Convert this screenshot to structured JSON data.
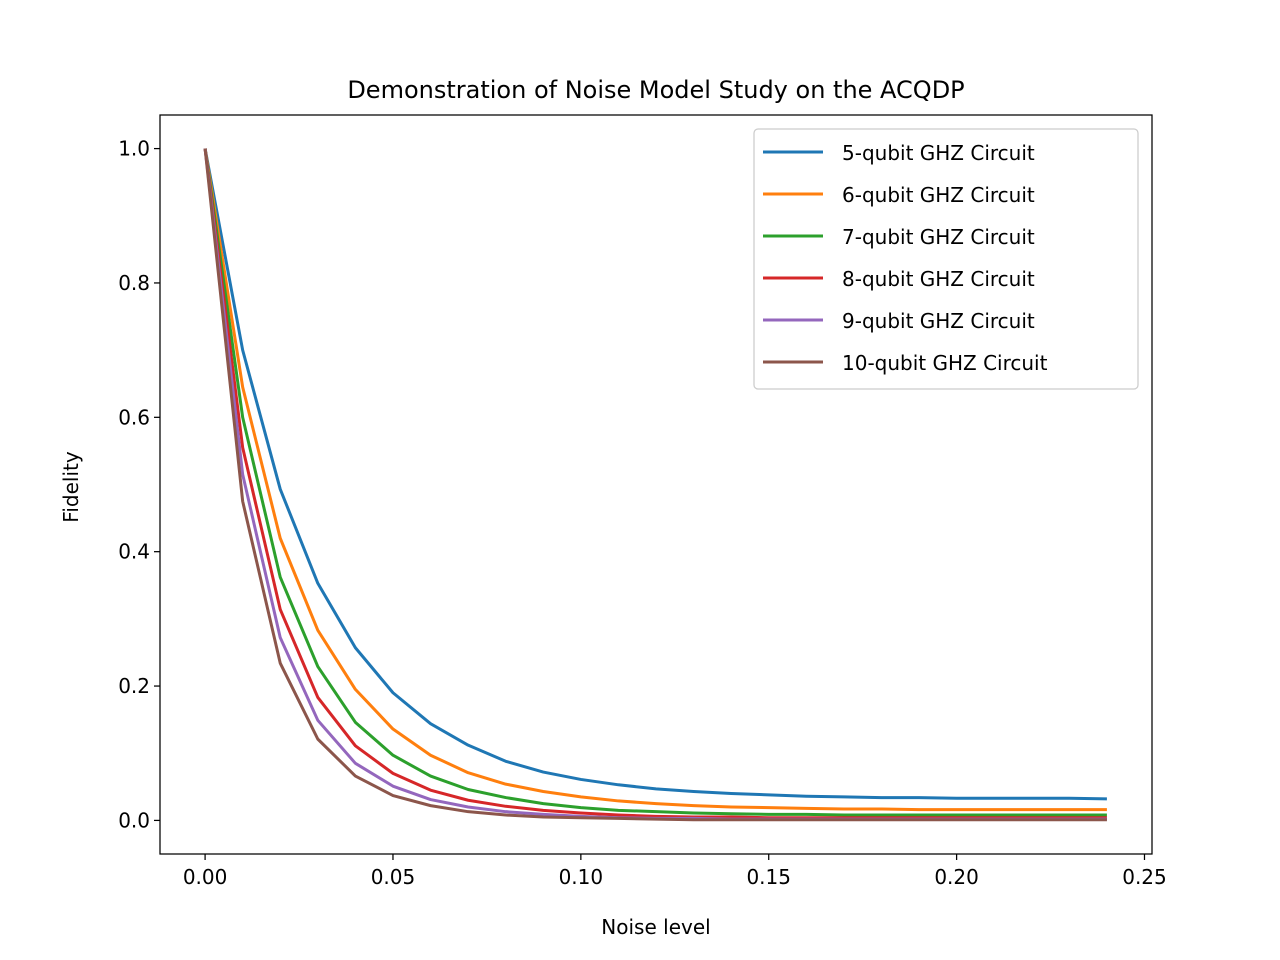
{
  "chart_data": {
    "type": "line",
    "title": "Demonstration of Noise Model Study on the ACQDP",
    "xlabel": "Noise level",
    "ylabel": "Fidelity",
    "xlim": [
      -0.012,
      0.252
    ],
    "ylim": [
      -0.05,
      1.05
    ],
    "xticks": [
      0.0,
      0.05,
      0.1,
      0.15,
      0.2,
      0.25
    ],
    "xtick_labels": [
      "0.00",
      "0.05",
      "0.10",
      "0.15",
      "0.20",
      "0.25"
    ],
    "yticks": [
      0.0,
      0.2,
      0.4,
      0.6,
      0.8,
      1.0
    ],
    "ytick_labels": [
      "0.0",
      "0.2",
      "0.4",
      "0.6",
      "0.8",
      "1.0"
    ],
    "legend_position": "top-right",
    "grid": false,
    "x": [
      0.0,
      0.01,
      0.02,
      0.03,
      0.04,
      0.05,
      0.06,
      0.07,
      0.08,
      0.09,
      0.1,
      0.11,
      0.12,
      0.13,
      0.14,
      0.15,
      0.16,
      0.17,
      0.18,
      0.19,
      0.2,
      0.21,
      0.22,
      0.23,
      0.24
    ],
    "series": [
      {
        "name": "5-qubit GHZ Circuit",
        "color": "#1f77b4",
        "values": [
          1.0,
          0.7,
          0.493,
          0.353,
          0.257,
          0.19,
          0.144,
          0.112,
          0.088,
          0.072,
          0.061,
          0.053,
          0.047,
          0.043,
          0.04,
          0.038,
          0.036,
          0.035,
          0.034,
          0.034,
          0.033,
          0.033,
          0.033,
          0.033,
          0.032
        ]
      },
      {
        "name": "6-qubit GHZ Circuit",
        "color": "#ff7f0e",
        "values": [
          1.0,
          0.645,
          0.42,
          0.283,
          0.195,
          0.136,
          0.097,
          0.071,
          0.054,
          0.043,
          0.035,
          0.029,
          0.025,
          0.022,
          0.02,
          0.019,
          0.018,
          0.017,
          0.017,
          0.016,
          0.016,
          0.016,
          0.016,
          0.016,
          0.016
        ]
      },
      {
        "name": "7-qubit GHZ Circuit",
        "color": "#2ca02c",
        "values": [
          1.0,
          0.6,
          0.362,
          0.229,
          0.146,
          0.097,
          0.066,
          0.046,
          0.034,
          0.025,
          0.019,
          0.015,
          0.013,
          0.011,
          0.01,
          0.009,
          0.009,
          0.008,
          0.008,
          0.008,
          0.008,
          0.008,
          0.008,
          0.008,
          0.008
        ]
      },
      {
        "name": "8-qubit GHZ Circuit",
        "color": "#d62728",
        "values": [
          1.0,
          0.555,
          0.314,
          0.183,
          0.111,
          0.07,
          0.045,
          0.03,
          0.021,
          0.015,
          0.011,
          0.008,
          0.006,
          0.005,
          0.005,
          0.004,
          0.004,
          0.004,
          0.004,
          0.004,
          0.004,
          0.004,
          0.004,
          0.004,
          0.004
        ]
      },
      {
        "name": "9-qubit GHZ Circuit",
        "color": "#9467bd",
        "values": [
          1.0,
          0.515,
          0.272,
          0.149,
          0.085,
          0.051,
          0.031,
          0.02,
          0.013,
          0.009,
          0.006,
          0.004,
          0.003,
          0.003,
          0.002,
          0.002,
          0.002,
          0.002,
          0.002,
          0.002,
          0.002,
          0.002,
          0.002,
          0.002,
          0.002
        ]
      },
      {
        "name": "10-qubit GHZ Circuit",
        "color": "#8c564b",
        "values": [
          1.0,
          0.475,
          0.234,
          0.121,
          0.066,
          0.037,
          0.022,
          0.013,
          0.008,
          0.005,
          0.004,
          0.003,
          0.002,
          0.001,
          0.001,
          0.001,
          0.001,
          0.001,
          0.001,
          0.001,
          0.001,
          0.001,
          0.001,
          0.001,
          0.001
        ]
      }
    ]
  }
}
